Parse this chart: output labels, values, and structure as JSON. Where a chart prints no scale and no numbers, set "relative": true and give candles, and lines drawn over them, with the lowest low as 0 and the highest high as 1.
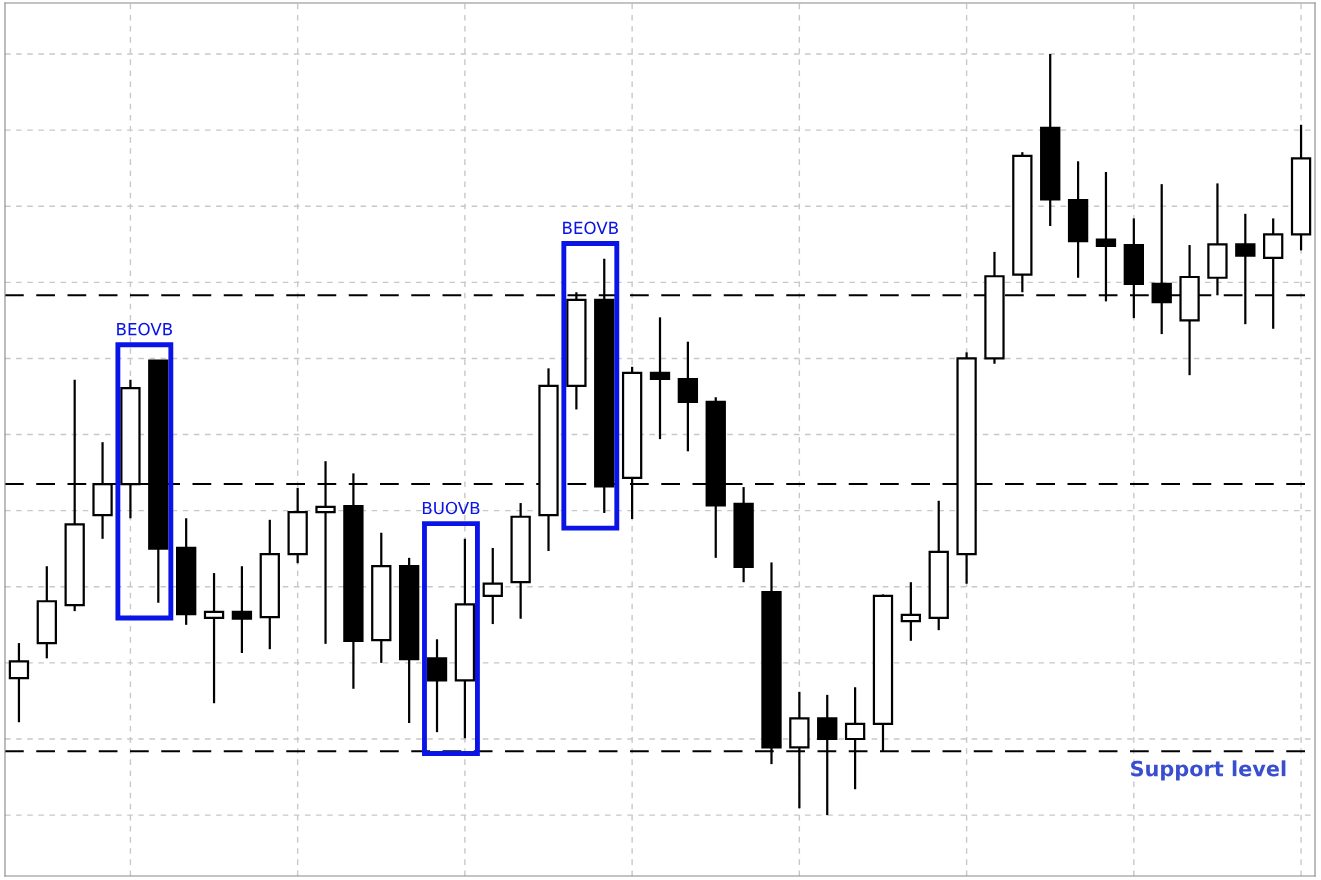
{
  "chart_data": {
    "type": "candlestick",
    "relative": true,
    "grid": true,
    "categories": [
      null,
      null,
      null,
      null,
      null,
      null,
      null,
      null,
      null,
      null,
      null,
      null,
      null,
      null,
      null,
      null,
      null,
      null,
      null,
      null,
      null,
      null,
      null,
      null,
      null,
      null,
      null,
      null,
      null,
      null,
      null,
      null,
      null,
      null,
      null,
      null,
      null,
      null,
      null,
      null,
      null,
      null,
      null,
      null,
      null,
      null,
      null
    ],
    "ohlc": [
      [
        0.18,
        0.226,
        0.122,
        0.202
      ],
      [
        0.226,
        0.327,
        0.206,
        0.281
      ],
      [
        0.276,
        0.572,
        0.268,
        0.382
      ],
      [
        0.394,
        0.49,
        0.363,
        0.435
      ],
      [
        0.435,
        0.572,
        0.39,
        0.561
      ],
      [
        0.597,
        0.598,
        0.279,
        0.35
      ],
      [
        0.351,
        0.39,
        0.25,
        0.264
      ],
      [
        0.259,
        0.318,
        0.147,
        0.267
      ],
      [
        0.267,
        0.327,
        0.213,
        0.258
      ],
      [
        0.26,
        0.388,
        0.218,
        0.343
      ],
      [
        0.343,
        0.43,
        0.331,
        0.398
      ],
      [
        0.398,
        0.465,
        0.225,
        0.405
      ],
      [
        0.406,
        0.449,
        0.166,
        0.229
      ],
      [
        0.23,
        0.371,
        0.2,
        0.327
      ],
      [
        0.327,
        0.338,
        0.121,
        0.205
      ],
      [
        0.206,
        0.231,
        0.109,
        0.177
      ],
      [
        0.177,
        0.363,
        0.101,
        0.277
      ],
      [
        0.288,
        0.351,
        0.251,
        0.304
      ],
      [
        0.306,
        0.41,
        0.258,
        0.392
      ],
      [
        0.394,
        0.587,
        0.347,
        0.564
      ],
      [
        0.564,
        0.687,
        0.533,
        0.677
      ],
      [
        0.677,
        0.731,
        0.397,
        0.432
      ],
      [
        0.443,
        0.589,
        0.389,
        0.581
      ],
      [
        0.581,
        0.654,
        0.494,
        0.573
      ],
      [
        0.573,
        0.622,
        0.478,
        0.543
      ],
      [
        0.543,
        0.549,
        0.338,
        0.407
      ],
      [
        0.409,
        0.431,
        0.306,
        0.326
      ],
      [
        0.293,
        0.332,
        0.067,
        0.089
      ],
      [
        0.089,
        0.162,
        0.009,
        0.127
      ],
      [
        0.127,
        0.158,
        0.0,
        0.1
      ],
      [
        0.1,
        0.168,
        0.034,
        0.12
      ],
      [
        0.12,
        0.29,
        0.083,
        0.288
      ],
      [
        0.255,
        0.306,
        0.229,
        0.263
      ],
      [
        0.259,
        0.413,
        0.243,
        0.346
      ],
      [
        0.343,
        0.608,
        0.304,
        0.6
      ],
      [
        0.6,
        0.74,
        0.593,
        0.708
      ],
      [
        0.71,
        0.871,
        0.687,
        0.866
      ],
      [
        0.903,
        1.0,
        0.774,
        0.809
      ],
      [
        0.808,
        0.859,
        0.706,
        0.754
      ],
      [
        0.756,
        0.845,
        0.675,
        0.748
      ],
      [
        0.749,
        0.784,
        0.653,
        0.698
      ],
      [
        0.698,
        0.829,
        0.632,
        0.674
      ],
      [
        0.65,
        0.749,
        0.578,
        0.707
      ],
      [
        0.706,
        0.83,
        0.683,
        0.75
      ],
      [
        0.75,
        0.79,
        0.645,
        0.735
      ],
      [
        0.732,
        0.784,
        0.639,
        0.763
      ],
      [
        0.763,
        0.907,
        0.742,
        0.863
      ]
    ],
    "ref_lines": [
      {
        "axis": "y",
        "value": 0.683,
        "color": "#000000",
        "line_style": "dashed"
      },
      {
        "axis": "y",
        "value": 0.435,
        "color": "#000000",
        "line_style": "dashed"
      },
      {
        "axis": "y",
        "value": 0.084,
        "color": "#000000",
        "line_style": "dashed",
        "label": "Support level"
      }
    ],
    "annotations": [
      "BEOVB",
      "BUOVB",
      "BEOVB"
    ]
  }
}
